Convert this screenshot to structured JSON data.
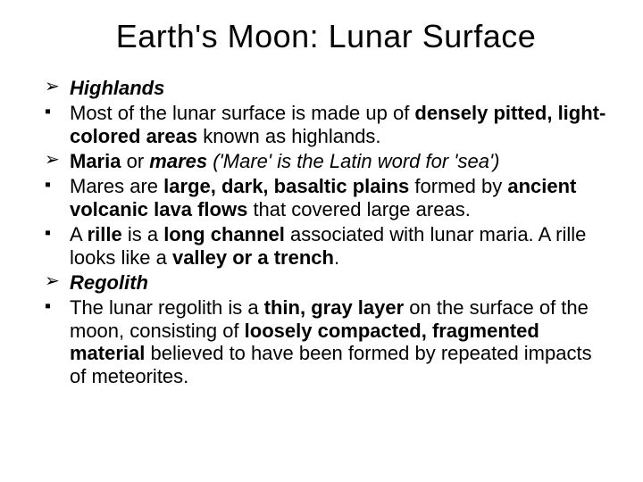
{
  "title": "Earth's Moon: Lunar Surface",
  "markers": {
    "arrow": "➢",
    "square": "▪"
  },
  "items": [
    {
      "marker": "arrow",
      "runs": [
        {
          "t": "Highlands",
          "cls": "bi"
        }
      ]
    },
    {
      "marker": "square",
      "runs": [
        {
          "t": "Most of the lunar surface is made up of "
        },
        {
          "t": "densely pitted, light-colored areas ",
          "cls": "b"
        },
        {
          "t": "known as highlands."
        }
      ]
    },
    {
      "marker": "arrow",
      "runs": [
        {
          "t": "Maria ",
          "cls": "b"
        },
        {
          "t": "or "
        },
        {
          "t": "mares ",
          "cls": "bi"
        },
        {
          "t": "('Mare' is the Latin word for 'sea')",
          "cls": "i"
        }
      ]
    },
    {
      "marker": "square",
      "runs": [
        {
          "t": "Mares are "
        },
        {
          "t": "large, dark, basaltic plains ",
          "cls": "b"
        },
        {
          "t": "formed by "
        },
        {
          "t": "ancient volcanic lava flows ",
          "cls": "b"
        },
        {
          "t": "that covered large areas."
        }
      ]
    },
    {
      "marker": "square",
      "runs": [
        {
          "t": "A "
        },
        {
          "t": "rille ",
          "cls": "b"
        },
        {
          "t": "is a "
        },
        {
          "t": "long channel ",
          "cls": "b"
        },
        {
          "t": "associated with lunar maria. A rille looks like a "
        },
        {
          "t": "valley or a trench",
          "cls": "b"
        },
        {
          "t": "."
        }
      ]
    },
    {
      "marker": "arrow",
      "runs": [
        {
          "t": "Regolith",
          "cls": "bi"
        }
      ]
    },
    {
      "marker": "square",
      "runs": [
        {
          "t": "The lunar regolith is a "
        },
        {
          "t": "thin, gray layer ",
          "cls": "b"
        },
        {
          "t": "on the surface of the moon, consisting of "
        },
        {
          "t": "loosely compacted, fragmented material ",
          "cls": "b"
        },
        {
          "t": "believed to have been formed by repeated impacts of meteorites."
        }
      ]
    }
  ]
}
